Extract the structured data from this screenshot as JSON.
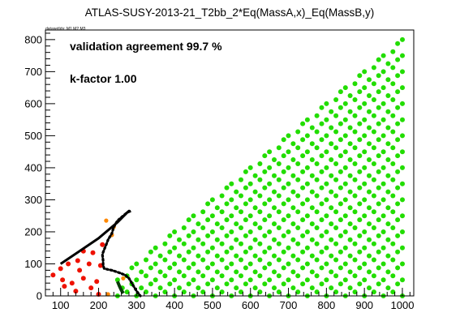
{
  "chart_data": {
    "type": "scatter",
    "title": "ATLAS-SUSY-2013-21_T2bb_2*Eq(MassA,x)_Eq(MassB,y)",
    "small_label": "datasetIds: M1 M2 M3",
    "annotations": [
      "validation agreement 99.7 %",
      "k-factor 1.00"
    ],
    "xlabel": "",
    "ylabel": "",
    "xlim": [
      60,
      1030
    ],
    "ylim": [
      0,
      830
    ],
    "xticks": [
      100,
      200,
      300,
      400,
      500,
      600,
      700,
      800,
      900,
      1000
    ],
    "yticks": [
      0,
      100,
      200,
      300,
      400,
      500,
      600,
      700,
      800
    ],
    "grid": false,
    "colors": {
      "allowed": "#22dd00",
      "excluded": "#ee1100",
      "borderline": "#ff8800",
      "official_curve": "#000000",
      "smodels_curve": "#000000",
      "curve_tail": "#0a3a0a"
    },
    "grid_points": {
      "description_free": true,
      "x_start": 100,
      "x_end": 1000,
      "x_step": 25,
      "y_step": 25,
      "diagonal_offset": 200
    },
    "excluded_points": [
      [
        80,
        65
      ],
      [
        105,
        50
      ],
      [
        130,
        40
      ],
      [
        150,
        80
      ],
      [
        160,
        55
      ],
      [
        180,
        25
      ],
      [
        195,
        45
      ],
      [
        205,
        95
      ],
      [
        175,
        100
      ],
      [
        145,
        110
      ],
      [
        120,
        100
      ],
      [
        100,
        85
      ],
      [
        200,
        5
      ],
      [
        185,
        135
      ],
      [
        160,
        140
      ],
      [
        210,
        160
      ],
      [
        110,
        30
      ],
      [
        140,
        15
      ]
    ],
    "borderline_points": [
      [
        225,
        5
      ],
      [
        235,
        190
      ],
      [
        240,
        215
      ],
      [
        220,
        235
      ],
      [
        265,
        55
      ]
    ],
    "official_curve": [
      [
        100,
        100
      ],
      [
        150,
        140
      ],
      [
        200,
        180
      ],
      [
        250,
        230
      ],
      [
        275,
        260
      ],
      [
        285,
        265
      ]
    ],
    "smodels_curve": [
      [
        280,
        265
      ],
      [
        265,
        250
      ],
      [
        250,
        235
      ],
      [
        240,
        215
      ],
      [
        235,
        195
      ],
      [
        225,
        175
      ],
      [
        220,
        160
      ],
      [
        215,
        145
      ],
      [
        210,
        130
      ],
      [
        212,
        110
      ],
      [
        212,
        95
      ],
      [
        215,
        85
      ],
      [
        235,
        80
      ],
      [
        255,
        72
      ],
      [
        270,
        65
      ],
      [
        280,
        55
      ],
      [
        290,
        35
      ],
      [
        300,
        15
      ],
      [
        310,
        0
      ]
    ],
    "curve_tail": [
      [
        250,
        45
      ],
      [
        255,
        30
      ],
      [
        260,
        18
      ],
      [
        265,
        8
      ]
    ]
  }
}
